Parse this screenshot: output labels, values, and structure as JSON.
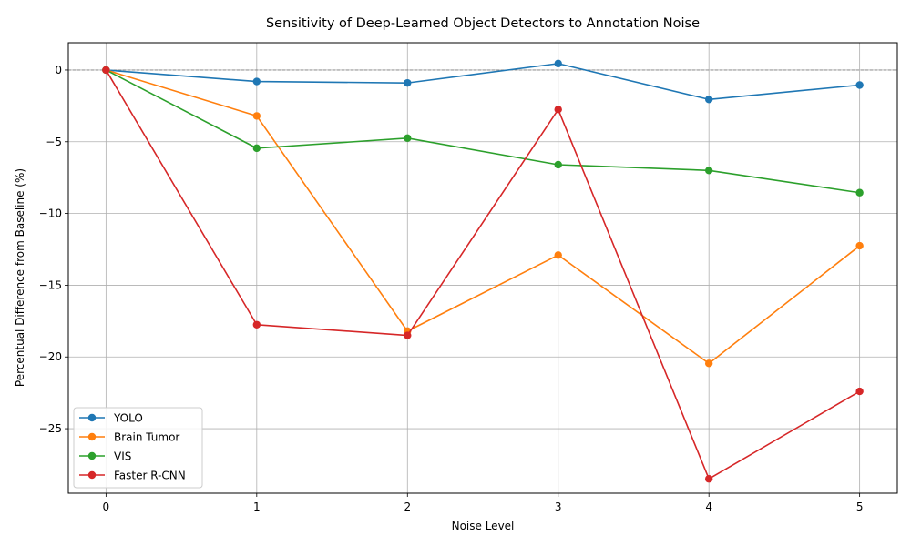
{
  "chart_data": {
    "type": "line",
    "title": "Sensitivity of Deep-Learned Object Detectors to Annotation Noise",
    "xlabel": "Noise Level",
    "ylabel": "Percentual Difference from Baseline (%)",
    "x": [
      0,
      1,
      2,
      3,
      4,
      5
    ],
    "xlim": [
      -0.25,
      5.25
    ],
    "ylim": [
      -29.5,
      1.9
    ],
    "xticks": [
      0,
      1,
      2,
      3,
      4,
      5
    ],
    "xtick_labels": [
      "0",
      "1",
      "2",
      "3",
      "4",
      "5"
    ],
    "yticks": [
      0,
      -5,
      -10,
      -15,
      -20,
      -25
    ],
    "ytick_labels": [
      "0",
      "−5",
      "−10",
      "−15",
      "−20",
      "−25"
    ],
    "grid": true,
    "reference_line": 0,
    "legend_position": "lower-left",
    "series": [
      {
        "name": "YOLO",
        "color": "#1f77b4",
        "values": [
          0,
          -0.8,
          -0.9,
          0.45,
          -2.05,
          -1.05
        ]
      },
      {
        "name": "Brain Tumor",
        "color": "#ff7f0e",
        "values": [
          0,
          -3.2,
          -18.2,
          -12.9,
          -20.45,
          -12.25
        ]
      },
      {
        "name": "VIS",
        "color": "#2ca02c",
        "values": [
          0,
          -5.45,
          -4.75,
          -6.6,
          -7.0,
          -8.55
        ]
      },
      {
        "name": "Faster R-CNN",
        "color": "#d62728",
        "values": [
          0,
          -17.75,
          -18.5,
          -2.75,
          -28.5,
          -22.4
        ]
      }
    ]
  }
}
